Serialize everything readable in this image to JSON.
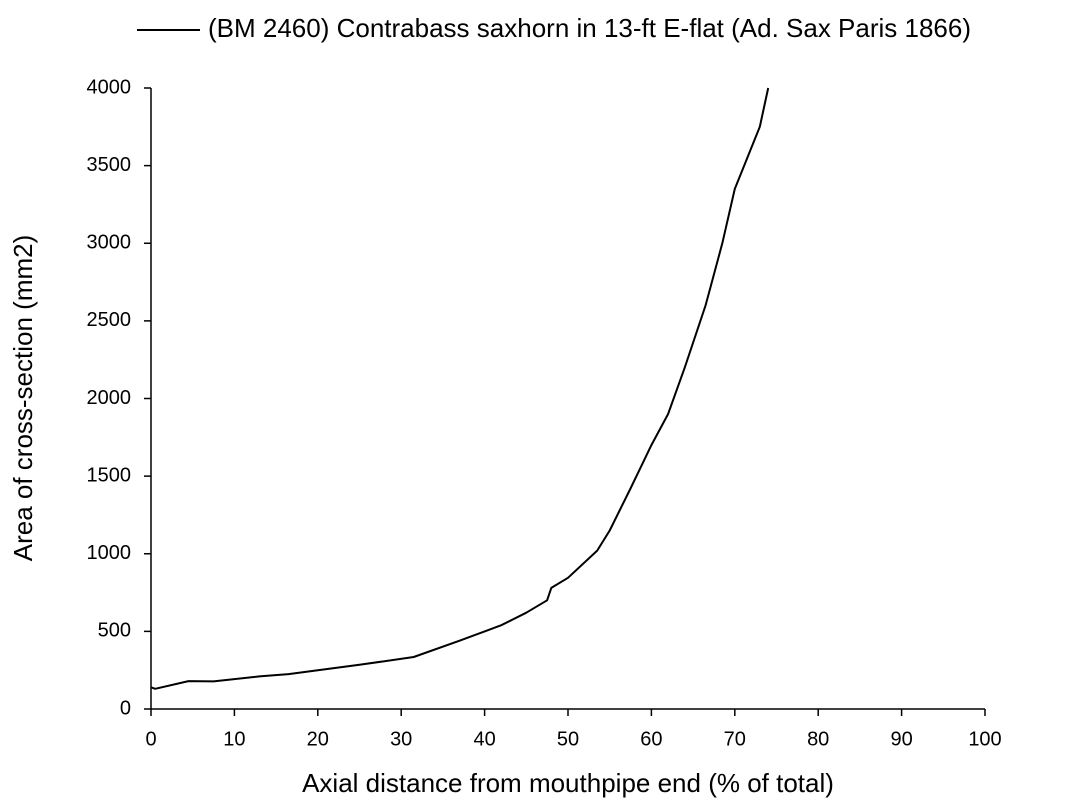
{
  "chart_data": {
    "type": "line",
    "xlabel": "Axial distance from mouthpipe end (% of total)",
    "ylabel": "Area of cross-section (mm2)",
    "series": [
      {
        "name": "(BM 2460) Contrabass saxhorn in 13-ft E-flat (Ad. Sax Paris 1866)",
        "color": "#000000",
        "x": [
          0,
          0.5,
          4.5,
          7.5,
          13,
          16.5,
          20,
          25,
          31.5,
          37,
          40,
          42,
          45,
          47.5,
          48,
          50,
          53.5,
          55,
          57.5,
          60,
          62,
          64,
          66.5,
          67,
          68.5,
          70,
          71.5,
          73,
          74
        ],
        "values": [
          140,
          130,
          180,
          178,
          210,
          225,
          250,
          285,
          335,
          440,
          500,
          540,
          620,
          700,
          780,
          845,
          1020,
          1150,
          1420,
          1700,
          1900,
          2200,
          2600,
          2700,
          3000,
          3350,
          3550,
          3750,
          4000
        ]
      }
    ],
    "xlim": [
      0,
      100
    ],
    "xticks": [
      0,
      10,
      20,
      30,
      40,
      50,
      60,
      70,
      80,
      90,
      100
    ],
    "ylim": [
      0,
      4000
    ],
    "yticks": [
      0,
      500,
      1000,
      1500,
      2000,
      2500,
      3000,
      3500,
      4000
    ],
    "grid": false,
    "legend": "top"
  }
}
